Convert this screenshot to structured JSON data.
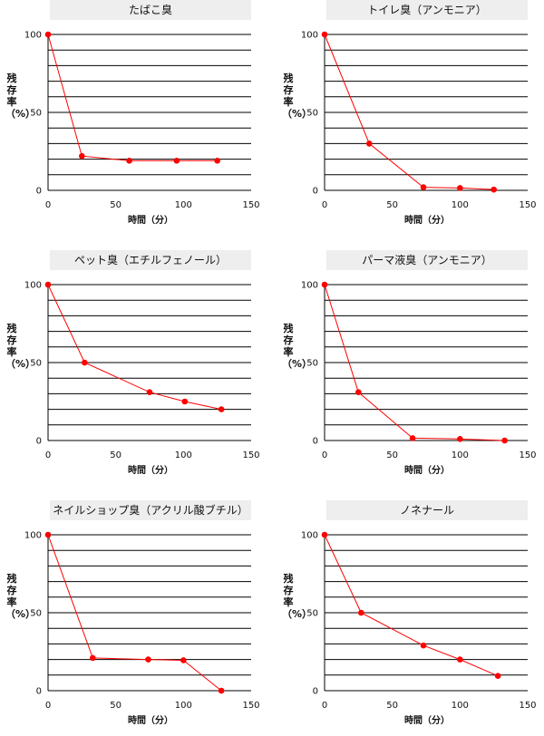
{
  "colors": {
    "series": "#ff0000",
    "grid": "#000000",
    "title_bg": "#eeeeee"
  },
  "chart_data": [
    {
      "type": "line",
      "title": "たばこ臭",
      "xlabel": "時間（分）",
      "ylabel": "残存率（%）",
      "xlim": [
        0,
        150
      ],
      "ylim": [
        0,
        100
      ],
      "xticks": [
        0,
        50,
        100,
        150
      ],
      "yticks": [
        0,
        50,
        100
      ],
      "x": [
        0,
        25,
        60,
        95,
        125
      ],
      "y": [
        100,
        22,
        19,
        19,
        19
      ],
      "grid": "horizontal"
    },
    {
      "type": "line",
      "title": "トイレ臭（アンモニア）",
      "xlabel": "時間（分）",
      "ylabel": "残存率（%）",
      "xlim": [
        0,
        150
      ],
      "ylim": [
        0,
        100
      ],
      "xticks": [
        0,
        50,
        100,
        150
      ],
      "yticks": [
        0,
        50,
        100
      ],
      "x": [
        0,
        33,
        73,
        100,
        125
      ],
      "y": [
        100,
        30,
        2,
        1.5,
        0.5
      ],
      "grid": "horizontal"
    },
    {
      "type": "line",
      "title": "ペット臭（エチルフェノール）",
      "xlabel": "時間（分）",
      "ylabel": "残存率（%）",
      "xlim": [
        0,
        150
      ],
      "ylim": [
        0,
        100
      ],
      "xticks": [
        0,
        50,
        100,
        150
      ],
      "yticks": [
        0,
        50,
        100
      ],
      "x": [
        0,
        27,
        75,
        101,
        128
      ],
      "y": [
        100,
        50,
        31,
        25,
        20
      ],
      "grid": "horizontal"
    },
    {
      "type": "line",
      "title": "パーマ液臭（アンモニア）",
      "xlabel": "時間（分）",
      "ylabel": "残存率（%）",
      "xlim": [
        0,
        150
      ],
      "ylim": [
        0,
        100
      ],
      "xticks": [
        0,
        50,
        100,
        150
      ],
      "yticks": [
        0,
        50,
        100
      ],
      "x": [
        0,
        25,
        65,
        100,
        133
      ],
      "y": [
        100,
        31,
        1.5,
        1,
        0
      ],
      "grid": "horizontal"
    },
    {
      "type": "line",
      "title": "ネイルショップ臭（アクリル酸ブチル）",
      "xlabel": "時間（分）",
      "ylabel": "残存率（%）",
      "xlim": [
        0,
        150
      ],
      "ylim": [
        0,
        100
      ],
      "xticks": [
        0,
        50,
        100,
        150
      ],
      "yticks": [
        0,
        50,
        100
      ],
      "x": [
        0,
        33,
        74,
        100,
        128
      ],
      "y": [
        100,
        21,
        20,
        19.5,
        0
      ],
      "grid": "horizontal"
    },
    {
      "type": "line",
      "title": "ノネナール",
      "xlabel": "時間（分）",
      "ylabel": "残存率（%）",
      "xlim": [
        0,
        150
      ],
      "ylim": [
        0,
        100
      ],
      "xticks": [
        0,
        50,
        100,
        150
      ],
      "yticks": [
        0,
        50,
        100
      ],
      "x": [
        0,
        27,
        73,
        100,
        128
      ],
      "y": [
        100,
        50,
        29,
        20,
        9.5
      ],
      "grid": "horizontal"
    }
  ]
}
